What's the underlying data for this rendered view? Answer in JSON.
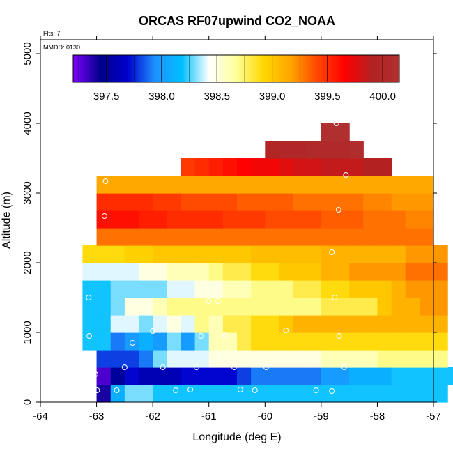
{
  "chart_data": {
    "type": "heatmap",
    "title": "ORCAS RF07upwind CO2_NOAA",
    "flts_label": "Flts: 7",
    "mmdd_label": "MMDD: 0130",
    "xlabel": "Longitude (deg E)",
    "ylabel": "Altitude (m)",
    "xlim": [
      -64,
      -57
    ],
    "ylim": [
      0,
      5200
    ],
    "x_ticks": [
      -64,
      -63,
      -62,
      -61,
      -60,
      -59,
      -58,
      -57
    ],
    "y_ticks": [
      0,
      1000,
      2000,
      3000,
      4000,
      5000
    ],
    "colorbar": {
      "min": 397.2,
      "max": 400.15,
      "ticks": [
        397.5,
        398.0,
        398.5,
        399.0,
        399.5,
        400.0
      ],
      "tick_labels": [
        "397.5",
        "398.0",
        "398.5",
        "399.0",
        "399.5",
        "400.0"
      ],
      "stops": [
        "#7f00ff",
        "#00008b",
        "#0000cd",
        "#1e90ff",
        "#00bfff",
        "#ffffff",
        "#ffff99",
        "#ffd700",
        "#ffa500",
        "#ff4500",
        "#ff0000",
        "#b22222",
        "#b03030"
      ]
    },
    "cell_width_deg": 0.25,
    "cell_height_m": 250,
    "rows": [
      {
        "alt": 0,
        "lon_start": -63.0,
        "values": [
          397.4,
          398.1,
          398.3,
          398.3,
          398.2,
          398.2,
          398.2,
          398.2,
          398.2,
          398.2,
          398.2,
          398.2,
          398.2,
          398.2,
          398.2,
          398.2,
          398.2,
          398.2,
          398.2,
          398.2,
          398.2,
          398.2,
          398.2,
          398.2,
          398.2
        ]
      },
      {
        "alt": 250,
        "lon_start": -63.0,
        "values": [
          397.3,
          397.5,
          397.7,
          397.6,
          397.6,
          397.6,
          397.7,
          397.7,
          397.7,
          397.7,
          397.8,
          397.9,
          397.9,
          397.9,
          397.9,
          397.9,
          398.0,
          398.0,
          398.1,
          398.1,
          398.1,
          398.2,
          398.2,
          398.2,
          398.2,
          398.2
        ]
      },
      {
        "alt": 500,
        "lon_start": -63.0,
        "values": [
          397.8,
          397.8,
          397.8,
          397.9,
          398.3,
          398.4,
          398.4,
          398.4,
          398.5,
          398.5,
          398.5,
          398.5,
          398.5,
          398.5,
          398.5,
          398.5,
          398.6,
          398.6,
          398.6,
          398.6,
          398.7,
          398.7,
          398.7,
          398.7,
          398.7
        ]
      },
      {
        "alt": 750,
        "lon_start": -63.25,
        "values": [
          398.2,
          398.2,
          397.9,
          398.0,
          398.1,
          398.0,
          398.3,
          398.0,
          398.3,
          398.6,
          398.6,
          398.8,
          398.9,
          398.9,
          398.9,
          398.9,
          398.9,
          398.9,
          398.9,
          398.9,
          398.9,
          398.9,
          398.9,
          398.9,
          398.9,
          398.9
        ]
      },
      {
        "alt": 1000,
        "lon_start": -63.25,
        "values": [
          398.2,
          398.2,
          398.4,
          398.4,
          398.3,
          398.4,
          398.5,
          398.4,
          398.7,
          398.6,
          398.8,
          398.8,
          398.9,
          398.9,
          399.0,
          399.1,
          399.1,
          399.1,
          399.1,
          399.1,
          399.1,
          399.1,
          399.1,
          399.1,
          399.1,
          399.1
        ]
      },
      {
        "alt": 1250,
        "lon_start": -63.25,
        "values": [
          398.2,
          398.2,
          398.3,
          398.5,
          398.5,
          398.6,
          398.7,
          398.7,
          398.7,
          398.7,
          398.7,
          398.7,
          398.7,
          398.7,
          398.7,
          398.7,
          398.7,
          398.8,
          398.8,
          398.8,
          398.8,
          399.0,
          399.1,
          399.1,
          399.2,
          399.2
        ]
      },
      {
        "alt": 1500,
        "lon_start": -63.25,
        "values": [
          398.2,
          398.2,
          398.3,
          398.3,
          398.3,
          398.3,
          398.4,
          398.4,
          398.5,
          398.5,
          398.6,
          398.6,
          398.7,
          398.7,
          398.7,
          398.8,
          398.8,
          398.9,
          398.9,
          399.0,
          399.0,
          399.0,
          399.1,
          399.2,
          399.2,
          399.2
        ]
      },
      {
        "alt": 1750,
        "lon_start": -63.25,
        "values": [
          398.4,
          398.4,
          398.4,
          398.4,
          398.5,
          398.5,
          398.6,
          398.6,
          398.6,
          398.7,
          398.8,
          398.8,
          398.9,
          398.9,
          399.0,
          399.0,
          399.0,
          399.1,
          399.1,
          399.2,
          399.2,
          399.2,
          399.2,
          399.3,
          399.3,
          399.3
        ]
      },
      {
        "alt": 2000,
        "lon_start": -63.25,
        "values": [
          398.9,
          398.9,
          398.9,
          398.95,
          398.95,
          399.0,
          399.0,
          399.0,
          399.0,
          399.0,
          399.0,
          399.0,
          399.05,
          399.05,
          399.05,
          399.05,
          399.05,
          399.1,
          399.1,
          399.1,
          399.1,
          399.1,
          399.1,
          399.2,
          399.2,
          399.2
        ]
      },
      {
        "alt": 2250,
        "lon_start": -63.0,
        "values": [
          399.3,
          399.3,
          399.3,
          399.3,
          399.3,
          399.3,
          399.3,
          399.3,
          399.3,
          399.3,
          399.3,
          399.3,
          399.3,
          399.3,
          399.3,
          399.3,
          399.3,
          399.3,
          399.3,
          399.3,
          399.3,
          399.3,
          399.3,
          399.3
        ]
      },
      {
        "alt": 2500,
        "lon_start": -63.0,
        "values": [
          399.6,
          399.6,
          399.6,
          399.55,
          399.55,
          399.5,
          399.5,
          399.5,
          399.5,
          399.45,
          399.45,
          399.45,
          399.4,
          399.4,
          399.4,
          399.4,
          399.35,
          399.35,
          399.35,
          399.3,
          399.3,
          399.3,
          399.25,
          399.25
        ]
      },
      {
        "alt": 2750,
        "lon_start": -63.0,
        "values": [
          399.5,
          399.5,
          399.5,
          399.5,
          399.45,
          399.45,
          399.4,
          399.4,
          399.4,
          399.4,
          399.35,
          399.35,
          399.35,
          399.35,
          399.3,
          399.3,
          399.3,
          399.3,
          399.3,
          399.25,
          399.25,
          399.2,
          399.2,
          399.2
        ]
      },
      {
        "alt": 3000,
        "lon_start": -63.0,
        "values": [
          399.15,
          399.15,
          399.15,
          399.15,
          399.15,
          399.15,
          399.15,
          399.15,
          399.15,
          399.15,
          399.15,
          399.15,
          399.15,
          399.15,
          399.15,
          399.15,
          399.15,
          399.15,
          399.15,
          399.15,
          399.15,
          399.15,
          399.15,
          399.15
        ]
      },
      {
        "alt": 3250,
        "lon_start": -61.5,
        "values": [
          399.45,
          399.5,
          399.55,
          399.6,
          399.65,
          399.7,
          399.7,
          399.75,
          399.8,
          399.8,
          399.85,
          399.85,
          399.85,
          399.9,
          399.9
        ]
      },
      {
        "alt": 3500,
        "lon_start": -60.0,
        "values": [
          399.95,
          400.0,
          400.0,
          400.05,
          400.05,
          400.05,
          400.1
        ]
      },
      {
        "alt": 3750,
        "lon_start": -59.0,
        "values": [
          400.15,
          400.15
        ]
      }
    ],
    "points": [
      {
        "lon": -62.84,
        "alt": 3170
      },
      {
        "lon": -62.86,
        "alt": 2670
      },
      {
        "lon": -58.73,
        "alt": 4000
      },
      {
        "lon": -58.56,
        "alt": 3260
      },
      {
        "lon": -58.69,
        "alt": 2760
      },
      {
        "lon": -58.81,
        "alt": 2150
      },
      {
        "lon": -63.14,
        "alt": 1500
      },
      {
        "lon": -58.76,
        "alt": 1500
      },
      {
        "lon": -61.0,
        "alt": 1450
      },
      {
        "lon": -60.84,
        "alt": 1450
      },
      {
        "lon": -63.13,
        "alt": 950
      },
      {
        "lon": -62.0,
        "alt": 1020
      },
      {
        "lon": -61.14,
        "alt": 950
      },
      {
        "lon": -60.71,
        "alt": 960
      },
      {
        "lon": -59.63,
        "alt": 1030
      },
      {
        "lon": -58.68,
        "alt": 950
      },
      {
        "lon": -62.36,
        "alt": 850
      },
      {
        "lon": -62.5,
        "alt": 500
      },
      {
        "lon": -61.82,
        "alt": 500
      },
      {
        "lon": -61.22,
        "alt": 500
      },
      {
        "lon": -60.55,
        "alt": 500
      },
      {
        "lon": -59.98,
        "alt": 500
      },
      {
        "lon": -58.59,
        "alt": 500
      },
      {
        "lon": -63.02,
        "alt": 400
      },
      {
        "lon": -62.99,
        "alt": 170
      },
      {
        "lon": -62.64,
        "alt": 170
      },
      {
        "lon": -61.59,
        "alt": 170
      },
      {
        "lon": -61.33,
        "alt": 180
      },
      {
        "lon": -60.44,
        "alt": 180
      },
      {
        "lon": -60.18,
        "alt": 170
      },
      {
        "lon": -59.09,
        "alt": 170
      },
      {
        "lon": -58.81,
        "alt": 160
      }
    ]
  }
}
